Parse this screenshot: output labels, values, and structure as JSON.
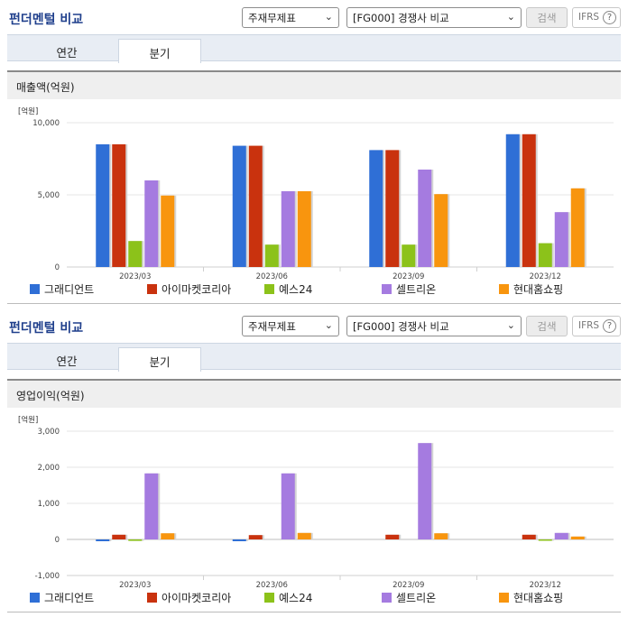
{
  "sections": [
    {
      "title": "펀더멘털 비교",
      "select1": "주재무제표",
      "select2": "[FG000] 경쟁사 비교",
      "search_label": "검색",
      "ifrs_label": "IFRS",
      "help_glyph": "?",
      "tabs": [
        {
          "label": "연간"
        },
        {
          "label": "분기"
        }
      ],
      "active_tab": 1,
      "metric_title": "매출액(억원)"
    },
    {
      "title": "펀더멘털 비교",
      "select1": "주재무제표",
      "select2": "[FG000] 경쟁사 비교",
      "search_label": "검색",
      "ifrs_label": "IFRS",
      "help_glyph": "?",
      "tabs": [
        {
          "label": "연간"
        },
        {
          "label": "분기"
        }
      ],
      "active_tab": 1,
      "metric_title": "영업이익(억원)"
    }
  ],
  "icons": {
    "dropdown": "chevron-down-icon",
    "help": "question-circle-icon"
  },
  "chart_data": [
    {
      "type": "bar",
      "unit_label": "[억원]",
      "categories": [
        "2023/03",
        "2023/06",
        "2023/09",
        "2023/12"
      ],
      "ylim": [
        0,
        10000
      ],
      "yticks": [
        0,
        5000,
        10000
      ],
      "ytick_labels": [
        "0",
        "5,000",
        "10,000"
      ],
      "grid": true,
      "legend": "bottom",
      "series": [
        {
          "name": "그래디언트",
          "color": "#2f6fd6",
          "values": [
            8500,
            8400,
            8100,
            9200
          ]
        },
        {
          "name": "아이마켓코리아",
          "color": "#c9320e",
          "values": [
            8500,
            8400,
            8100,
            9200
          ]
        },
        {
          "name": "예스24",
          "color": "#8cc21a",
          "values": [
            1800,
            1550,
            1550,
            1650
          ]
        },
        {
          "name": "셀트리온",
          "color": "#a57be0",
          "values": [
            6000,
            5250,
            6750,
            3800
          ]
        },
        {
          "name": "현대홈쇼핑",
          "color": "#f8950e",
          "values": [
            4950,
            5250,
            5050,
            5450
          ]
        }
      ]
    },
    {
      "type": "bar",
      "unit_label": "[억원]",
      "categories": [
        "2023/03",
        "2023/06",
        "2023/09",
        "2023/12"
      ],
      "ylim": [
        -1000,
        3000
      ],
      "yticks": [
        -1000,
        0,
        1000,
        2000,
        3000
      ],
      "ytick_labels": [
        "-1,000",
        "0",
        "1,000",
        "2,000",
        "3,000"
      ],
      "grid": true,
      "legend": "bottom",
      "series": [
        {
          "name": "그래디언트",
          "color": "#2f6fd6",
          "values": [
            -50,
            -50,
            0,
            0
          ]
        },
        {
          "name": "아이마켓코리아",
          "color": "#c9320e",
          "values": [
            130,
            120,
            130,
            130
          ]
        },
        {
          "name": "예스24",
          "color": "#8cc21a",
          "values": [
            -40,
            0,
            0,
            -30
          ]
        },
        {
          "name": "셀트리온",
          "color": "#a57be0",
          "values": [
            1830,
            1830,
            2670,
            180
          ]
        },
        {
          "name": "현대홈쇼핑",
          "color": "#f8950e",
          "values": [
            170,
            180,
            170,
            80
          ]
        }
      ]
    }
  ]
}
